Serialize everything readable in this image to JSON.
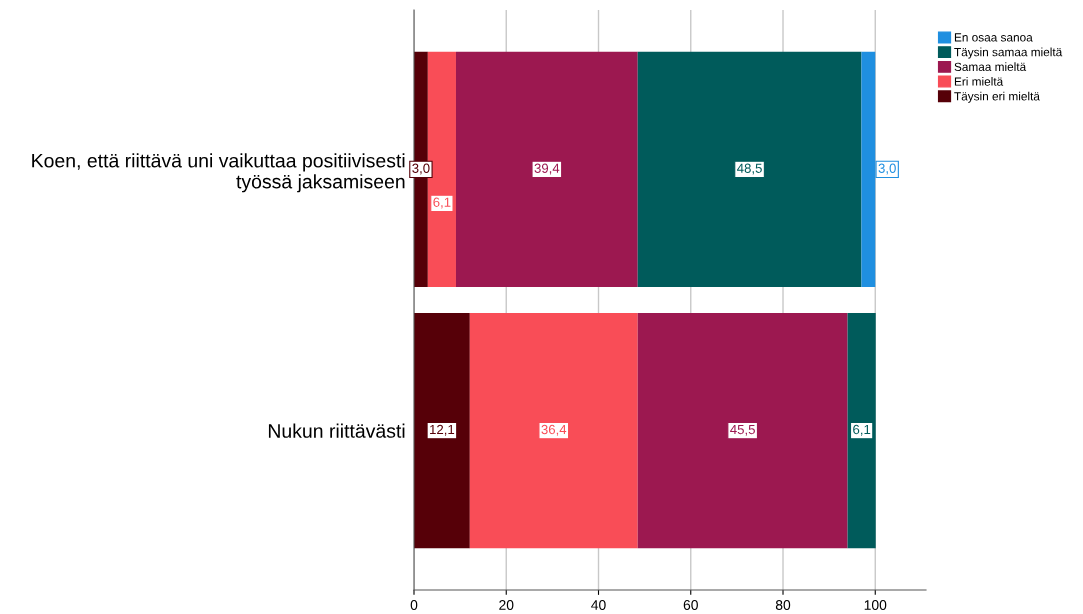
{
  "chart_data": {
    "type": "bar",
    "orientation": "horizontal",
    "stacked": true,
    "categories": [
      "Koen, että riittävä uni vaikuttaa positiivisesti\ntyössä jaksamiseen",
      "Nukun riittävästi"
    ],
    "series": [
      {
        "name": "Täysin eri mieltä",
        "color": "#560008",
        "values": [
          3.0,
          12.1
        ],
        "value_labels": [
          "3,0",
          "12,1"
        ]
      },
      {
        "name": "Eri mieltä",
        "color": "#f94d57",
        "values": [
          6.1,
          36.4
        ],
        "value_labels": [
          "6,1",
          "36,4"
        ]
      },
      {
        "name": "Samaa mieltä",
        "color": "#9c1850",
        "values": [
          39.4,
          45.5
        ],
        "value_labels": [
          "39,4",
          "45,5"
        ]
      },
      {
        "name": "Täysin samaa mieltä",
        "color": "#005b5b",
        "values": [
          48.5,
          6.1
        ],
        "value_labels": [
          "48,5",
          "6,1"
        ]
      },
      {
        "name": "En osaa sanoa",
        "color": "#1f8fe0",
        "values": [
          3.0,
          null
        ],
        "value_labels": [
          "3,0",
          null
        ]
      }
    ],
    "xlim": [
      0,
      111
    ],
    "xticks": [
      0,
      20,
      40,
      60,
      80,
      100
    ],
    "grid": "x",
    "legend": "top right"
  }
}
